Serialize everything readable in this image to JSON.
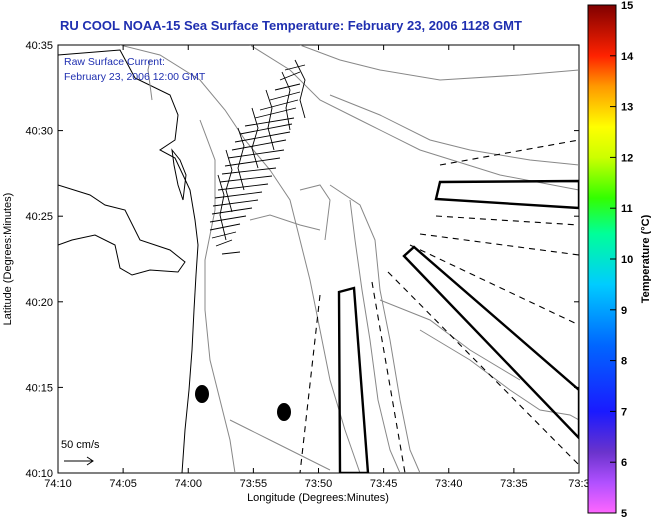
{
  "title": "RU COOL  NOAA-15  Sea Surface Temperature:  February 23, 2006 1128 GMT",
  "legend_text": {
    "line1": "Raw Surface Current:",
    "line2": "February 23, 2006 12:00 GMT"
  },
  "scale": {
    "label": "50 cm/s"
  },
  "axes": {
    "xlabel": "Longitude (Degrees:Minutes)",
    "ylabel": "Latitude (Degrees:Minutes)",
    "xticks": [
      "74:10",
      "74:05",
      "74:00",
      "73:55",
      "73:50",
      "73:45",
      "73:40",
      "73:35",
      "73:3"
    ],
    "yticks": [
      "40:35",
      "40:30",
      "40:25",
      "40:20",
      "40:15",
      "40:10"
    ]
  },
  "colorbar": {
    "label": "Temperature (°C)",
    "ticks": [
      "15",
      "14",
      "13",
      "12",
      "11",
      "10",
      "9",
      "8",
      "7",
      "6",
      "5"
    ],
    "min": 5,
    "max": 15
  },
  "colors": {
    "title": "#1f2fb0",
    "legend_text": "#1f2fb0"
  }
}
